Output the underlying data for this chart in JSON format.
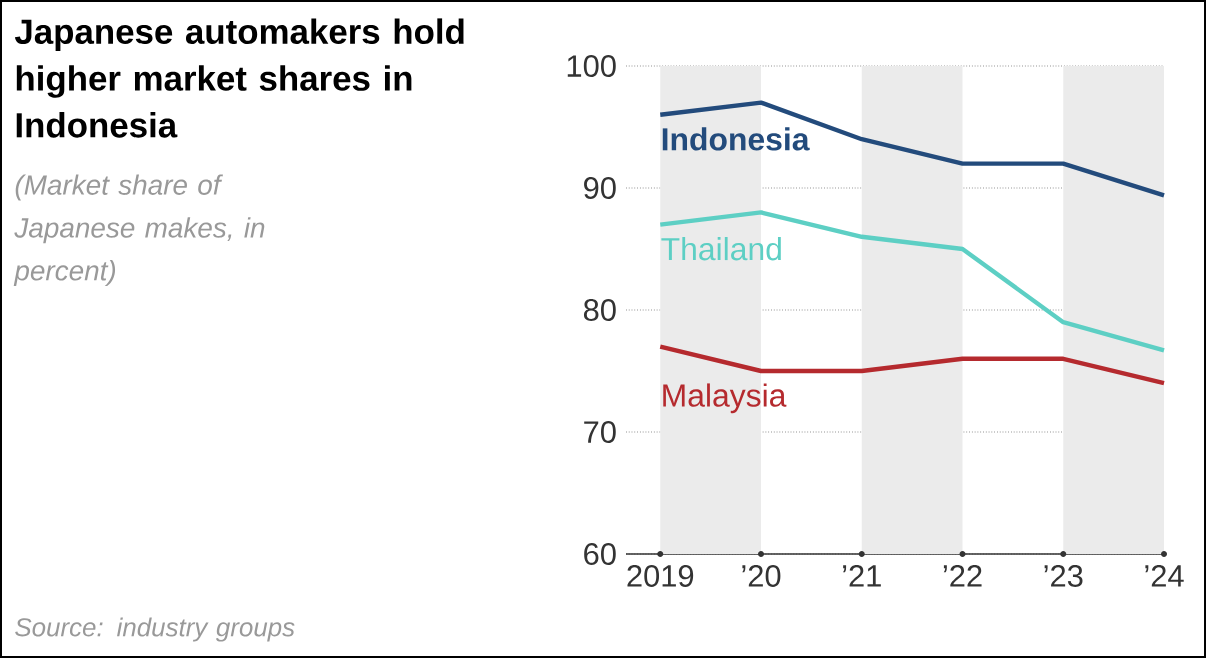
{
  "chart_data": {
    "type": "line",
    "title": "Japanese automakers hold higher market shares in Indonesia",
    "subtitle": "(Market share of Japanese makes, in percent)",
    "x": [
      2019,
      2020,
      2021,
      2022,
      2023,
      2024
    ],
    "xlim": [
      2018.66,
      2024
    ],
    "xticks": [
      2019,
      {
        "value": 2020,
        "label": "’20"
      },
      {
        "value": 2021,
        "label": "’21"
      },
      {
        "value": 2022,
        "label": "’22"
      },
      {
        "value": 2023,
        "label": "’23"
      },
      {
        "value": 2024,
        "label": "’24"
      }
    ],
    "ylim": [
      60,
      100
    ],
    "yticks": [
      60,
      70,
      80,
      90,
      100
    ],
    "grid": "y",
    "marker": "none",
    "line_style": "solid",
    "series": [
      {
        "name": "Indonesia",
        "color": "#234b7c",
        "values": [
          96,
          97,
          94,
          92,
          92,
          89.4
        ]
      },
      {
        "name": "Thailand",
        "color": "#5dcfc4",
        "values": [
          87,
          88,
          86,
          85,
          79,
          76.7
        ]
      },
      {
        "name": "Malaysia",
        "color": "#b52a2e",
        "values": [
          77,
          75,
          75,
          76,
          76,
          74
        ]
      }
    ],
    "bands": [
      {
        "axis": "x",
        "from": 2019,
        "to": 2020,
        "color": "#ebebeb"
      },
      {
        "axis": "x",
        "from": 2021,
        "to": 2022,
        "color": "#ebebeb"
      },
      {
        "axis": "x",
        "from": 2023,
        "to": 2024,
        "color": "#ebebeb"
      }
    ],
    "annotations": [
      "Source: industry groups"
    ]
  }
}
